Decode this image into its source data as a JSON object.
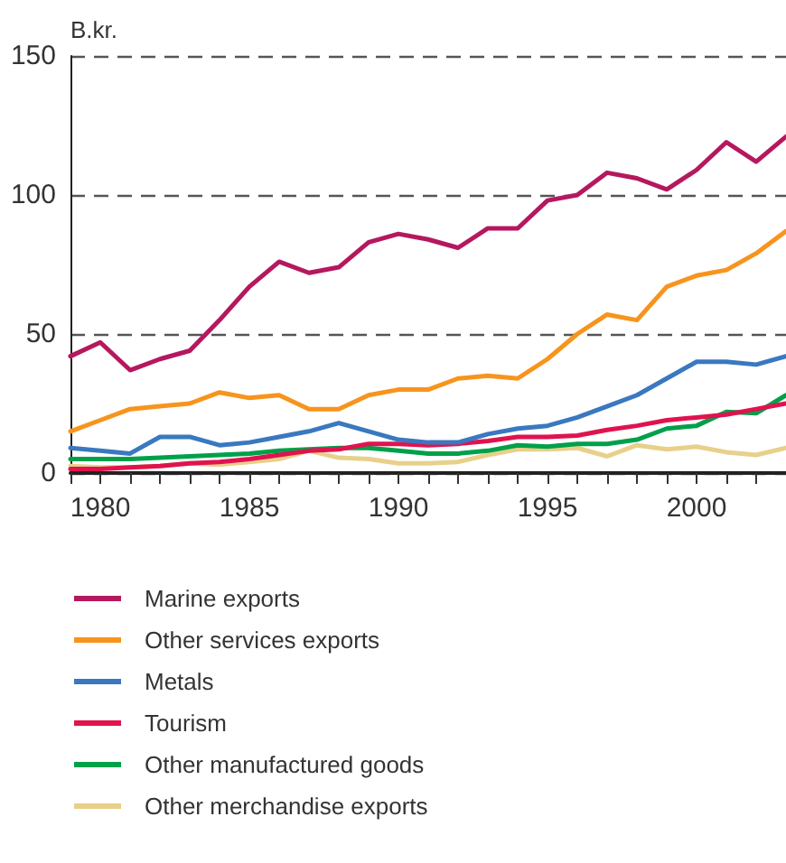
{
  "chart_data": {
    "type": "line",
    "ylabel": "B.kr.",
    "x": [
      1979,
      1980,
      1981,
      1982,
      1983,
      1984,
      1985,
      1986,
      1987,
      1988,
      1989,
      1990,
      1991,
      1992,
      1993,
      1994,
      1995,
      1996,
      1997,
      1998,
      1999,
      2000,
      2001,
      2002,
      2003
    ],
    "xlim": [
      1979,
      2003
    ],
    "xticks": [
      {
        "value": 1979,
        "label": null
      },
      1980,
      {
        "value": 1981,
        "label": null
      },
      {
        "value": 1982,
        "label": null
      },
      {
        "value": 1983,
        "label": null
      },
      {
        "value": 1984,
        "label": null
      },
      1985,
      {
        "value": 1986,
        "label": null
      },
      {
        "value": 1987,
        "label": null
      },
      {
        "value": 1988,
        "label": null
      },
      {
        "value": 1989,
        "label": null
      },
      1990,
      {
        "value": 1991,
        "label": null
      },
      {
        "value": 1992,
        "label": null
      },
      {
        "value": 1993,
        "label": null
      },
      {
        "value": 1994,
        "label": null
      },
      1995,
      {
        "value": 1996,
        "label": null
      },
      {
        "value": 1997,
        "label": null
      },
      {
        "value": 1998,
        "label": null
      },
      {
        "value": 1999,
        "label": null
      },
      2000,
      {
        "value": 2001,
        "label": null
      },
      {
        "value": 2002,
        "label": null
      },
      {
        "value": 2003,
        "label": null
      }
    ],
    "ylim": [
      0,
      150
    ],
    "yticks": [
      0,
      50,
      100,
      150
    ],
    "grid": "y",
    "legend": "bottom",
    "marker": "none",
    "line_style": "solid",
    "series": [
      {
        "name": "Marine exports",
        "color": "#b5185e",
        "values": [
          42,
          47,
          37,
          41,
          44,
          55,
          67,
          76,
          72,
          74,
          83,
          86,
          84,
          81,
          88,
          88,
          98,
          100,
          108,
          106,
          102,
          109,
          119,
          112,
          121
        ]
      },
      {
        "name": "Other services exports",
        "color": "#f7941d",
        "values": [
          15,
          19,
          23,
          24,
          25,
          29,
          27,
          28,
          23,
          23,
          28,
          30,
          30,
          34,
          35,
          34,
          41,
          50,
          57,
          55,
          67,
          71,
          73,
          79,
          87
        ]
      },
      {
        "name": "Metals",
        "color": "#3a78c0",
        "values": [
          9,
          8,
          7,
          13,
          13,
          10,
          11,
          13,
          15,
          18,
          15,
          12,
          11,
          11,
          14,
          16,
          17,
          20,
          24,
          28,
          34,
          40,
          40,
          39,
          42
        ]
      },
      {
        "name": "Tourism",
        "color": "#e0134e",
        "values": [
          1.5,
          1.5,
          2,
          2.5,
          3.5,
          4,
          5,
          6.5,
          8,
          8.5,
          10.5,
          10.5,
          10,
          10.5,
          11.5,
          13,
          13,
          13.5,
          15.5,
          17,
          19,
          20,
          21,
          23,
          25
        ]
      },
      {
        "name": "Other manufactured goods",
        "color": "#00a04a",
        "values": [
          5,
          5,
          5,
          5.5,
          6,
          6.5,
          7,
          8,
          8.5,
          9,
          9,
          8,
          7,
          7,
          8,
          10,
          9.5,
          10.5,
          10.5,
          12,
          16,
          17,
          22,
          21.5,
          28
        ]
      },
      {
        "name": "Other merchandise exports",
        "color": "#e8d08a",
        "values": [
          2.5,
          2,
          2,
          2.5,
          3.5,
          3,
          4,
          5,
          8,
          5.5,
          5,
          3.5,
          3.5,
          4,
          6.5,
          8.5,
          8.5,
          9,
          6,
          10,
          8.5,
          9.5,
          7.5,
          6.5,
          9
        ]
      }
    ]
  }
}
